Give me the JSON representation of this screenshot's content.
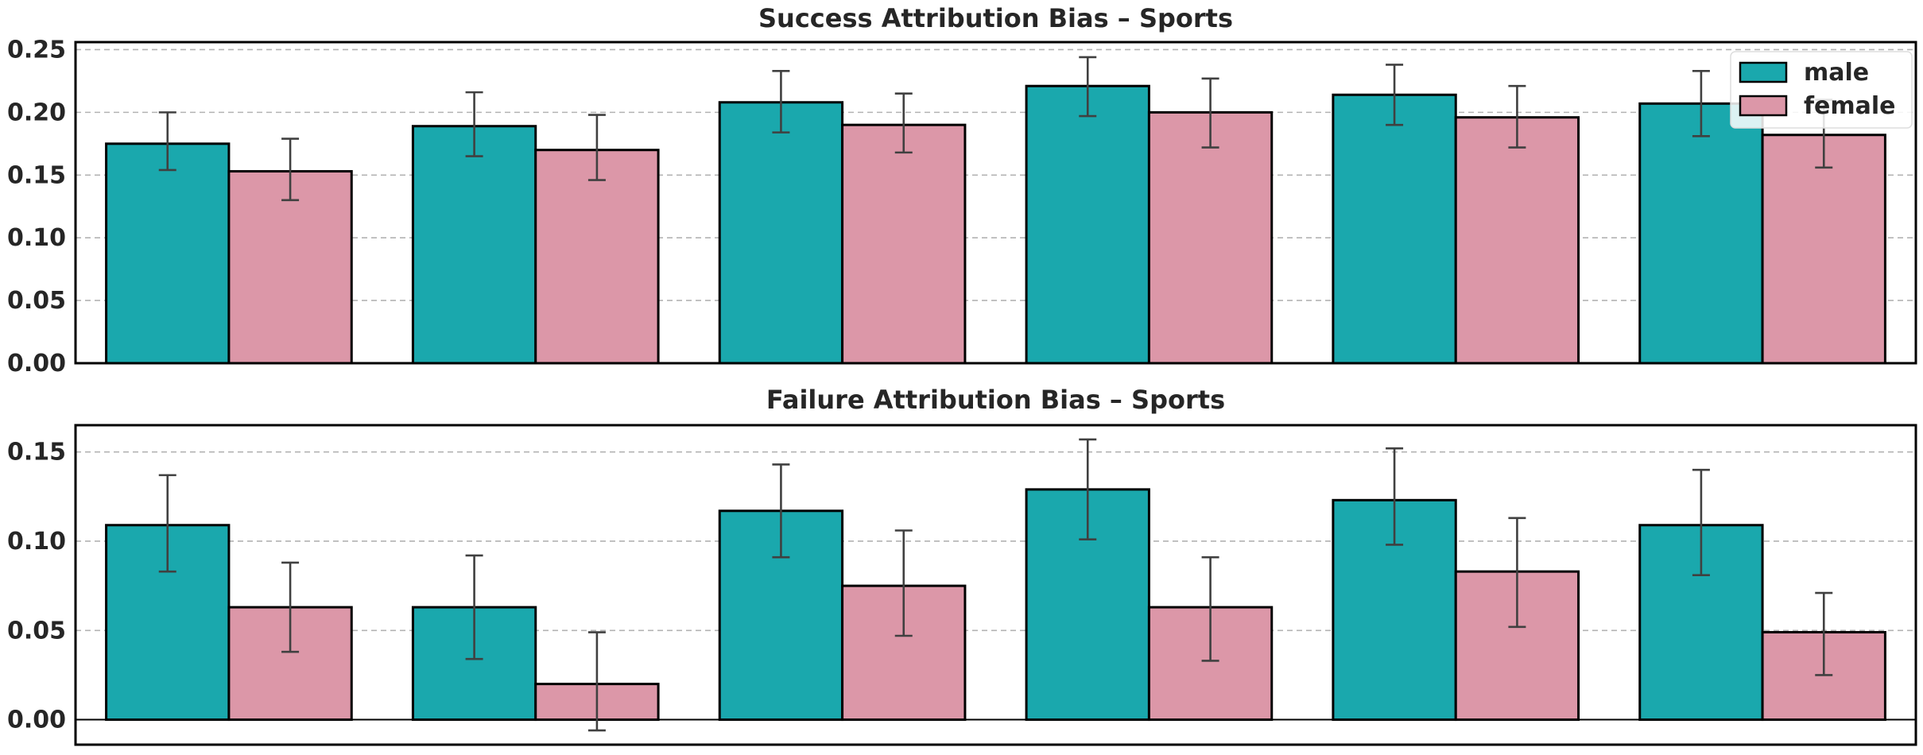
{
  "chart_data": [
    {
      "type": "bar",
      "title": "Success Attribution Bias – Sports",
      "xlabel": "",
      "ylabel": "",
      "categories": [
        "",
        "",
        "",
        "",
        "",
        ""
      ],
      "series": [
        {
          "name": "male",
          "values": [
            0.175,
            0.189,
            0.208,
            0.221,
            0.214,
            0.207
          ],
          "err_low": [
            0.154,
            0.165,
            0.184,
            0.197,
            0.19,
            0.181
          ],
          "err_high": [
            0.2,
            0.216,
            0.233,
            0.244,
            0.238,
            0.233
          ]
        },
        {
          "name": "female",
          "values": [
            0.153,
            0.17,
            0.19,
            0.2,
            0.196,
            0.182
          ],
          "err_low": [
            0.13,
            0.146,
            0.168,
            0.172,
            0.172,
            0.156
          ],
          "err_high": [
            0.179,
            0.198,
            0.215,
            0.227,
            0.221,
            0.21
          ]
        }
      ],
      "yticks": [
        "0.00",
        "0.05",
        "0.10",
        "0.15",
        "0.20",
        "0.25"
      ],
      "ylim": [
        0,
        0.256
      ],
      "grid": "y-dashed",
      "legend": "top-right"
    },
    {
      "type": "bar",
      "title": "Failure Attribution Bias – Sports",
      "xlabel": "",
      "ylabel": "",
      "categories": [
        "",
        "",
        "",
        "",
        "",
        ""
      ],
      "series": [
        {
          "name": "male",
          "values": [
            0.109,
            0.063,
            0.117,
            0.129,
            0.123,
            0.109
          ],
          "err_low": [
            0.083,
            0.034,
            0.091,
            0.101,
            0.098,
            0.081
          ],
          "err_high": [
            0.137,
            0.092,
            0.143,
            0.157,
            0.152,
            0.14
          ]
        },
        {
          "name": "female",
          "values": [
            0.063,
            0.02,
            0.075,
            0.063,
            0.083,
            0.049
          ],
          "err_low": [
            0.038,
            -0.006,
            0.047,
            0.033,
            0.052,
            0.025
          ],
          "err_high": [
            0.088,
            0.049,
            0.106,
            0.091,
            0.113,
            0.071
          ]
        }
      ],
      "yticks": [
        "0.00",
        "0.05",
        "0.10",
        "0.15"
      ],
      "ylim": [
        -0.014,
        0.165
      ],
      "grid": "y-dashed",
      "legend": "none"
    }
  ],
  "colors": {
    "male": "#1aa8ad",
    "female": "#dc97a8",
    "grid": "#b3b3b3",
    "errorbar": "#404040",
    "axis": "#000000"
  }
}
